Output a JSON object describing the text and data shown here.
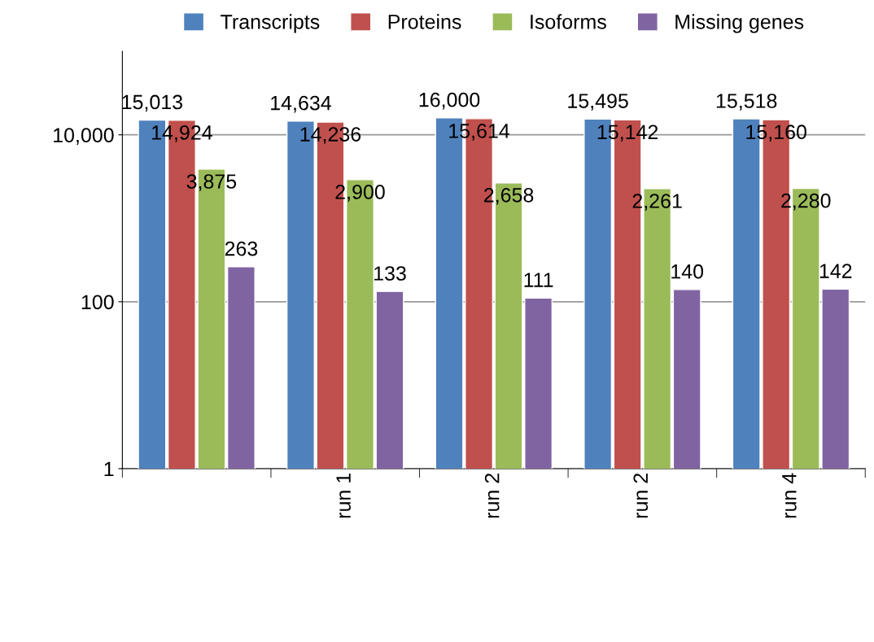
{
  "chart_data": {
    "type": "bar",
    "categories": [
      null,
      "run 1",
      "run 2",
      "run 2",
      "run 4"
    ],
    "series": [
      {
        "name": "Transcripts",
        "color": "#4f81bd",
        "values": [
          15013,
          14634,
          16000,
          15495,
          15518
        ],
        "value_labels": [
          "15,013",
          "14,634",
          "16,000",
          "15,495",
          "15,518"
        ]
      },
      {
        "name": "Proteins",
        "color": "#c0504d",
        "values": [
          14924,
          14236,
          15614,
          15142,
          15160
        ],
        "value_labels": [
          "14,924",
          "14,236",
          "15,614",
          "15,142",
          "15,160"
        ]
      },
      {
        "name": "Isoforms",
        "color": "#9bbb59",
        "values": [
          3875,
          2900,
          2658,
          2261,
          2280
        ],
        "value_labels": [
          "3,875",
          "2,900",
          "2,658",
          "2,261",
          "2,280"
        ]
      },
      {
        "name": "Missing genes",
        "color": "#8064a2",
        "values": [
          263,
          133,
          111,
          140,
          142
        ],
        "value_labels": [
          "263",
          "133",
          "111",
          "140",
          "142"
        ]
      }
    ],
    "log": "y",
    "ylim": [
      1,
      100000
    ],
    "yticks": [
      1,
      100,
      {
        "value": 10000,
        "label": "10,000"
      }
    ],
    "grid": "y",
    "legend": "top"
  }
}
